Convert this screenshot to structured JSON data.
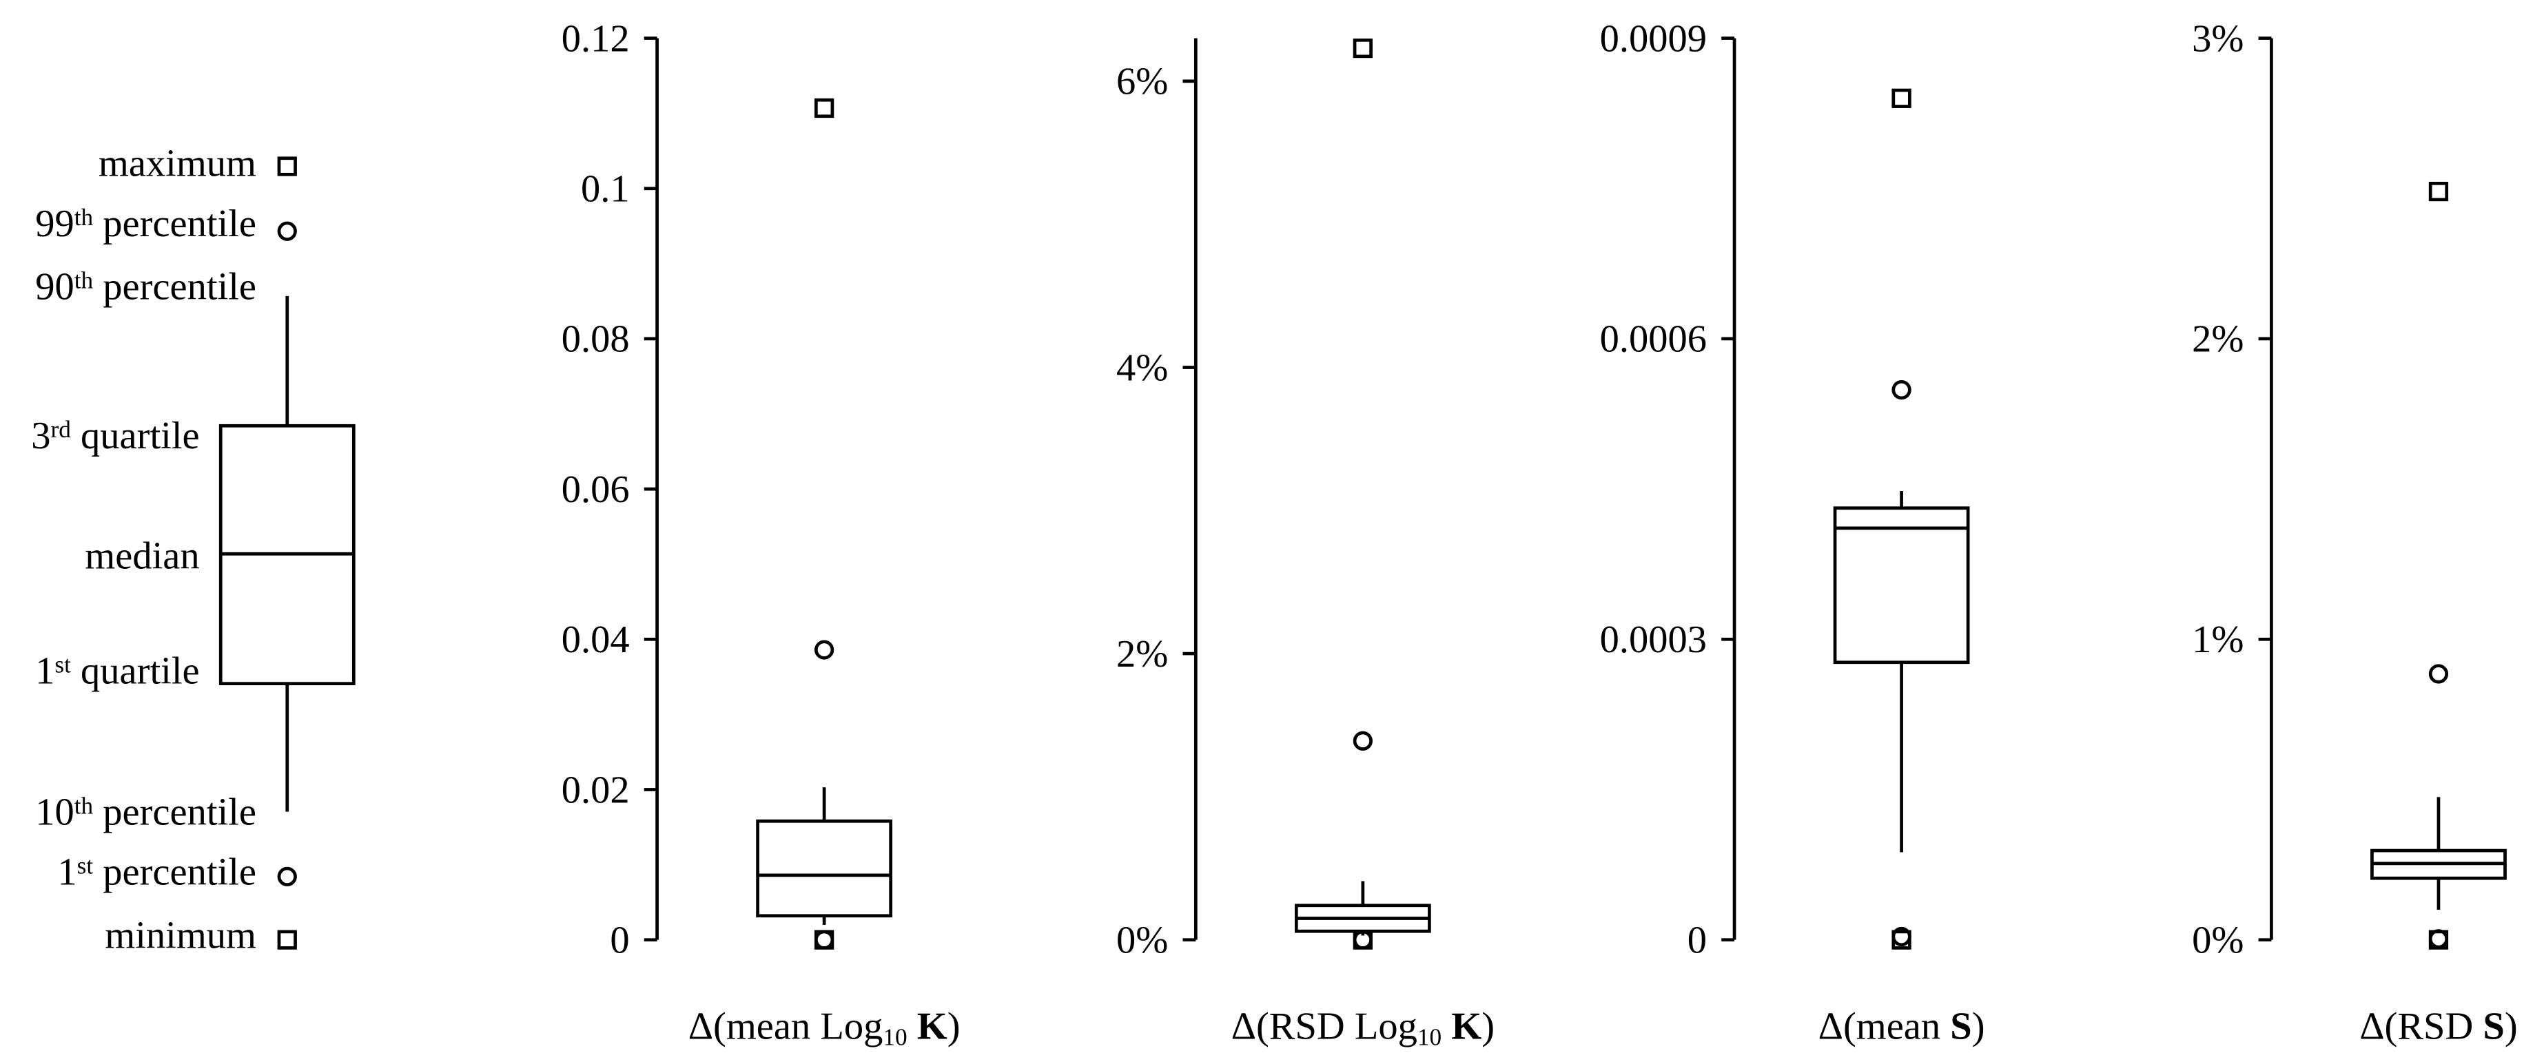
{
  "key": [
    [
      {
        "text": "maximum"
      }
    ],
    [
      {
        "text": "99"
      },
      {
        "text": "th",
        "style": "sup"
      },
      {
        "text": " percentile"
      }
    ],
    [
      {
        "text": "90"
      },
      {
        "text": "th",
        "style": "sup"
      },
      {
        "text": " percentile"
      }
    ],
    [
      {
        "text": "3"
      },
      {
        "text": "rd",
        "style": "sup"
      },
      {
        "text": " quartile"
      }
    ],
    [
      {
        "text": "median"
      }
    ],
    [
      {
        "text": "1"
      },
      {
        "text": "st",
        "style": "sup"
      },
      {
        "text": " quartile"
      }
    ],
    [
      {
        "text": "10"
      },
      {
        "text": "th",
        "style": "sup"
      },
      {
        "text": " percentile"
      }
    ],
    [
      {
        "text": "1"
      },
      {
        "text": "st",
        "style": "sup"
      },
      {
        "text": " percentile"
      }
    ],
    [
      {
        "text": "minimum"
      }
    ]
  ],
  "chart_data": [
    {
      "type": "box",
      "x_label": [
        {
          "text": "Δ(mean Log"
        },
        {
          "text": "10",
          "style": "sub"
        },
        {
          "text": " K",
          "style": "bold"
        },
        {
          "text": ")"
        }
      ],
      "ylim": [
        0,
        0.12
      ],
      "yticks": [
        0,
        0.02,
        0.04,
        0.06,
        0.08,
        0.1,
        0.12
      ],
      "stats": {
        "min": 0,
        "p1": 0,
        "p10": 0.002,
        "q1": 0.0032,
        "median": 0.0086,
        "q3": 0.0158,
        "p90": 0.0203,
        "p99": 0.0386,
        "max": 0.1107
      }
    },
    {
      "type": "box",
      "x_label": [
        {
          "text": "Δ(RSD Log"
        },
        {
          "text": "10",
          "style": "sub"
        },
        {
          "text": " K",
          "style": "bold"
        },
        {
          "text": ")"
        }
      ],
      "ylim": [
        0,
        6.3
      ],
      "yticks": [
        {
          "value": 0,
          "label": "0%"
        },
        {
          "value": 2,
          "label": "2%"
        },
        {
          "value": 4,
          "label": "4%"
        },
        {
          "value": 6,
          "label": "6%"
        }
      ],
      "stats": {
        "min": 0,
        "p1": 0,
        "p10": 0.03,
        "q1": 0.06,
        "median": 0.15,
        "q3": 0.24,
        "p90": 0.41,
        "p99": 1.39,
        "max": 6.23
      }
    },
    {
      "type": "box",
      "x_label": [
        {
          "text": "Δ(mean "
        },
        {
          "text": "S",
          "style": "bold"
        },
        {
          "text": ")"
        }
      ],
      "ylim": [
        0,
        0.0009
      ],
      "yticks": [
        0,
        0.0003,
        0.0006,
        0.0009
      ],
      "stats": {
        "min": 0,
        "p1": 3.2e-06,
        "p10": 8.74e-05,
        "q1": 0.000277,
        "median": 0.000411,
        "q3": 0.000431,
        "p90": 0.000448,
        "p99": 0.000549,
        "max": 0.00084
      }
    },
    {
      "type": "box",
      "x_label": [
        {
          "text": "Δ(RSD "
        },
        {
          "text": "S",
          "style": "bold"
        },
        {
          "text": ")"
        }
      ],
      "ylim": [
        0,
        3
      ],
      "yticks": [
        {
          "value": 0,
          "label": "0%"
        },
        {
          "value": 1,
          "label": "1%"
        },
        {
          "value": 2,
          "label": "2%"
        },
        {
          "value": 3,
          "label": "3%"
        }
      ],
      "stats": {
        "min": 0,
        "p1": 0.003,
        "p10": 0.1,
        "q1": 0.205,
        "median": 0.254,
        "q3": 0.297,
        "p90": 0.475,
        "p99": 0.885,
        "max": 2.49
      }
    }
  ]
}
